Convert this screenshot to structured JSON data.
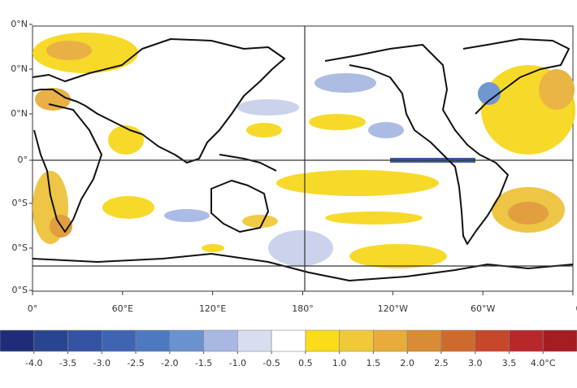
{
  "map": {
    "y_labels": [
      "0°N",
      "0°N",
      "0°N",
      "0°",
      "0°S",
      "0°S",
      "0°S"
    ],
    "x_labels": [
      "0°",
      "60°E",
      "120°E",
      "180°",
      "120°W",
      "60°W",
      "0"
    ]
  },
  "colorbar": {
    "ticks": [
      {
        "value": -4.0,
        "label": "-4.0"
      },
      {
        "value": -3.5,
        "label": "-3.5"
      },
      {
        "value": -3.0,
        "label": "-3.0"
      },
      {
        "value": -2.5,
        "label": "-2.5"
      },
      {
        "value": -2.0,
        "label": "-2.0"
      },
      {
        "value": -1.5,
        "label": "-1.5"
      },
      {
        "value": -1.0,
        "label": "-1.0"
      },
      {
        "value": -0.5,
        "label": "-0.5"
      },
      {
        "value": 0.5,
        "label": "0.5"
      },
      {
        "value": 1.0,
        "label": "1.0"
      },
      {
        "value": 1.5,
        "label": "1.5"
      },
      {
        "value": 2.0,
        "label": "2.0"
      },
      {
        "value": 2.5,
        "label": "2.5"
      },
      {
        "value": 3.0,
        "label": "3.0"
      },
      {
        "value": 3.5,
        "label": "3.5"
      },
      {
        "value": 4.0,
        "label": "4.0°C"
      }
    ],
    "colors": [
      "#1f2d78",
      "#2a4590",
      "#3453a3",
      "#3f64b2",
      "#4e78c0",
      "#6a92cf",
      "#a8b8e2",
      "#d8ddef",
      "#ffffff",
      "#f9dc1a",
      "#f0c93a",
      "#e7ac3c",
      "#d98c33",
      "#cf6a2e",
      "#c6472a",
      "#b8282a",
      "#a31d22"
    ]
  }
}
